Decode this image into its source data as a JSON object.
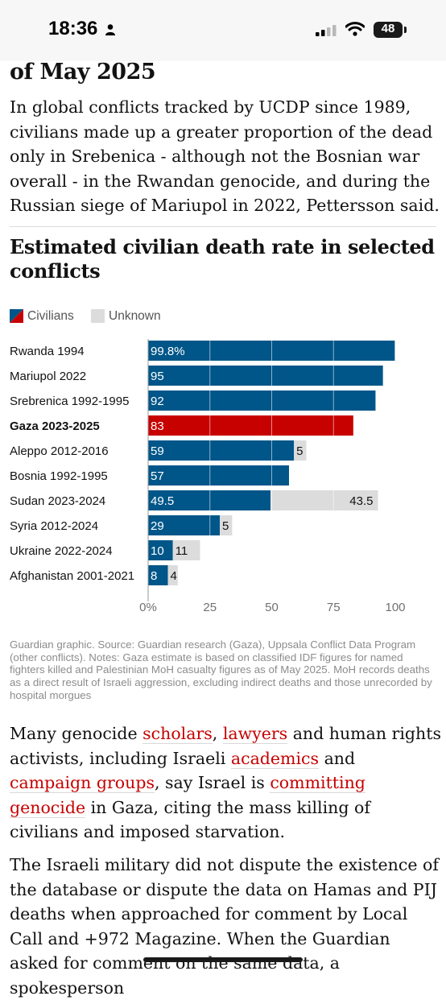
{
  "status_bar": {
    "time": "18:36",
    "battery": "48"
  },
  "headline": "of May 2025",
  "paragraph1": "In global conflicts tracked by UCDP since 1989, civilians made up a greater proportion of the dead only in Srebenica - although not the Bosnian war overall - in the Rwandan genocide, and during the Russian siege of Mariupol in 2022, Pettersson said.",
  "chart_data": {
    "type": "bar",
    "orientation": "horizontal",
    "stacked": true,
    "title": "Estimated civilian death rate in selected conflicts",
    "categories": [
      "Rwanda 1994",
      "Mariupol 2022",
      "Srebrenica 1992-1995",
      "Gaza 2023-2025",
      "Aleppo 2012-2016",
      "Bosnia 1992-1995",
      "Sudan 2023-2024",
      "Syria 2012-2024",
      "Ukraine 2022-2024",
      "Afghanistan 2001-2021"
    ],
    "highlight": "Gaza 2023-2025",
    "series": [
      {
        "name": "Civilians",
        "values": [
          99.8,
          95,
          92,
          83,
          59,
          57,
          49.5,
          29,
          10,
          8
        ],
        "labels": [
          "99.8%",
          "95",
          "92",
          "83",
          "59",
          "57",
          "49.5",
          "29",
          "10",
          "8"
        ]
      },
      {
        "name": "Unknown",
        "values": [
          null,
          null,
          null,
          null,
          5,
          null,
          43.5,
          5,
          11,
          4
        ],
        "labels": [
          "",
          "",
          "",
          "",
          "5",
          "",
          "43.5",
          "5",
          "11",
          "4"
        ]
      }
    ],
    "xlim": [
      0,
      100
    ],
    "xticks": [
      "0%",
      "25",
      "50",
      "75",
      "100"
    ],
    "grid": true,
    "legend_position": "top-left",
    "colors": {
      "civilians": "#005689",
      "gaza": "#c70000",
      "unknown": "#dcdcdc"
    }
  },
  "source_note": "Guardian graphic. Source: Guardian research (Gaza), Uppsala Conflict Data Program (other conflicts). Notes: Gaza estimate is based on classified IDF figures for named fighters killed and Palestinian MoH casualty figures as of May 2025. MoH records deaths as a direct result of Israeli aggression, excluding indirect deaths and those unrecorded by hospital morgues",
  "paragraph2": {
    "t1": "Many genocide ",
    "l1": "scholars",
    "t2": ", ",
    "l2": "lawyers",
    "t3": " and human rights activists, including Israeli ",
    "l3": "academics",
    "t4": " and ",
    "l4": "campaign groups",
    "t5": ", say Israel is ",
    "l5": "committing genocide",
    "t6": " in Gaza, citing the mass killing of civilians and imposed starvation."
  },
  "paragraph3": "The Israeli military did not dispute the existence of the database or dispute the data on Hamas and PIJ deaths when approached for comment by Local Call and +972 Magazine. When the Guardian asked for comment on the same data, a spokesperson"
}
